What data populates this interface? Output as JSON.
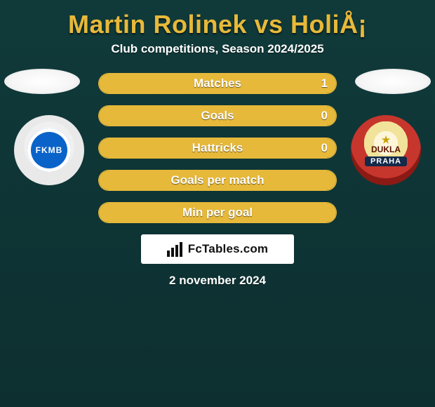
{
  "header": {
    "title": "Martin Rolinek vs HoliÅ¡",
    "subtitle": "Club competitions, Season 2024/2025"
  },
  "club_left": {
    "abbr": "FKMB"
  },
  "club_right": {
    "top": "DUKLA",
    "bottom": "PRAHA"
  },
  "stats": [
    {
      "label": "Matches",
      "value": "1",
      "show_value": true,
      "fill": 1.0
    },
    {
      "label": "Goals",
      "value": "0",
      "show_value": true,
      "fill": 1.0
    },
    {
      "label": "Hattricks",
      "value": "0",
      "show_value": true,
      "fill": 1.0
    },
    {
      "label": "Goals per match",
      "value": "",
      "show_value": false,
      "fill": 1.0
    },
    {
      "label": "Min per goal",
      "value": "",
      "show_value": false,
      "fill": 1.0
    }
  ],
  "brand": {
    "name": "FcTables.com"
  },
  "footer": {
    "date": "2 november 2024"
  },
  "colors": {
    "accent": "#e7b93a",
    "bg_top": "#103a3a",
    "bg_bottom": "#0d2f30",
    "pill_bg": "#1b4a49"
  }
}
